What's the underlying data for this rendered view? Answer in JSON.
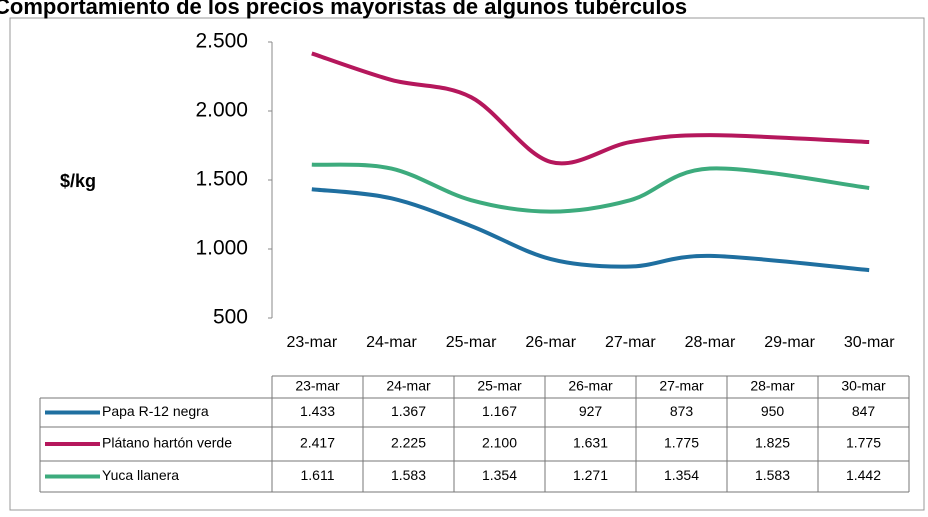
{
  "chart_data": {
    "type": "line",
    "title": "Comportamiento de los precios mayoristas de algunos tubérculos",
    "y_label": "$/kg",
    "xticks": [
      "23-mar",
      "24-mar",
      "25-mar",
      "26-mar",
      "27-mar",
      "28-mar",
      "29-mar",
      "30-mar"
    ],
    "categories": [
      "23-mar",
      "24-mar",
      "25-mar",
      "26-mar",
      "27-mar",
      "28-mar",
      "30-mar"
    ],
    "series": [
      {
        "name": "Papa R-12 negra",
        "color": "#1f6fa0",
        "values": [
          1433,
          1367,
          1167,
          927,
          873,
          950,
          847
        ],
        "value_labels": [
          "1.433",
          "1.367",
          "1.167",
          "927",
          "873",
          "950",
          "847"
        ]
      },
      {
        "name": "Plátano hartón verde",
        "color": "#b5175c",
        "values": [
          2417,
          2225,
          2100,
          1631,
          1775,
          1825,
          1775
        ],
        "value_labels": [
          "2.417",
          "2.225",
          "2.100",
          "1.631",
          "1.775",
          "1.825",
          "1.775"
        ]
      },
      {
        "name": "Yuca llanera",
        "color": "#3dab7d",
        "values": [
          1611,
          1583,
          1354,
          1271,
          1354,
          1583,
          1442
        ],
        "value_labels": [
          "1.611",
          "1.583",
          "1.354",
          "1.271",
          "1.354",
          "1.583",
          "1.442"
        ]
      }
    ],
    "ylim": [
      500,
      2500
    ],
    "yticks": [
      500,
      {
        "value": 1000,
        "label": "1.000"
      },
      {
        "value": 1500,
        "label": "1.500"
      },
      {
        "value": 2000,
        "label": "2.000"
      },
      {
        "value": 2500,
        "label": "2.500"
      }
    ],
    "grid": false
  }
}
